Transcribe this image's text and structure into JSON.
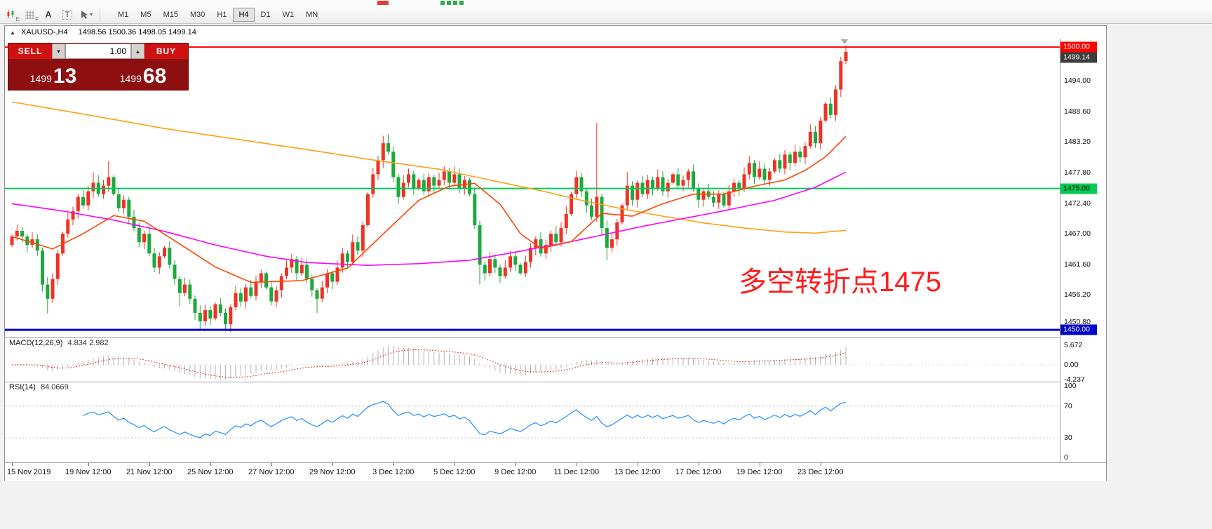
{
  "window": {
    "title_symbol": "XAUUSD-,H4",
    "title_ohlc": "1498.56 1500.36 1498.05 1499.14"
  },
  "toolbar": {
    "icon_sub_e": "E",
    "icon_sub_f": "F",
    "icon_a": "A",
    "icon_t": "T",
    "timeframes": [
      "M1",
      "M5",
      "M15",
      "M30",
      "H1",
      "H4",
      "D1",
      "W1",
      "MN"
    ],
    "active_timeframe": "H4"
  },
  "icons": {
    "collapse": "▲",
    "volume_down": "▼",
    "volume_up": "▲",
    "chevron_down": "▾"
  },
  "trade_panel": {
    "sell_label": "SELL",
    "buy_label": "BUY",
    "volume": "1.00",
    "bid_small": "1499",
    "bid_pips": "13",
    "ask_small": "1499",
    "ask_pips": "68"
  },
  "annotation": {
    "text": "多空转折点1475",
    "color": "#ff1c1c"
  },
  "macd": {
    "name": "MACD(12,26,9)",
    "values": "4.834 2.982",
    "axis_labels": [
      "5.672",
      "0.00",
      "-4.237"
    ]
  },
  "rsi": {
    "name": "RSI(14)",
    "value": "84.0669",
    "axis_labels": [
      "100",
      "70",
      "30",
      "0"
    ],
    "levels": [
      70,
      30
    ]
  },
  "chart_data": {
    "type": "candlestick",
    "symbol": "XAUUSD-",
    "period": "H4",
    "title": "XAUUSD-,H4 1498.56 1500.36 1498.05 1499.14",
    "y_range": [
      1448.6,
      1501.5
    ],
    "y_tick_labels": [
      "1494.00",
      "1488.60",
      "1483.20",
      "1477.80",
      "1472.40",
      "1467.00",
      "1461.60",
      "1456.20",
      "1450.80"
    ],
    "last_price": 1499.14,
    "last_price_label": "1499.14",
    "x_labels": [
      "15 Nov 2019",
      "19 Nov 12:00",
      "21 Nov 12:00",
      "25 Nov 12:00",
      "27 Nov 12:00",
      "29 Nov 12:00",
      "3 Dec 12:00",
      "5 Dec 12:00",
      "9 Dec 12:00",
      "11 Dec 12:00",
      "13 Dec 12:00",
      "17 Dec 12:00",
      "19 Dec 12:00",
      "23 Dec 12:00"
    ],
    "x_label_indices": [
      0,
      15,
      27,
      39,
      51,
      63,
      75,
      87,
      99,
      111,
      123,
      135,
      147,
      159
    ],
    "first_open": 1465.0,
    "closes": [
      1466.5,
      1467.5,
      1466.5,
      1465.0,
      1466.0,
      1464.0,
      1458.0,
      1455.5,
      1459.0,
      1463.5,
      1467.0,
      1469.5,
      1471.0,
      1473.5,
      1472.0,
      1474.5,
      1476.0,
      1474.0,
      1475.5,
      1477.0,
      1474.0,
      1471.5,
      1473.0,
      1470.0,
      1468.0,
      1465.5,
      1467.0,
      1463.5,
      1461.0,
      1463.0,
      1464.5,
      1461.5,
      1459.0,
      1456.5,
      1458.0,
      1455.5,
      1453.0,
      1451.5,
      1453.5,
      1452.0,
      1454.5,
      1453.0,
      1451.0,
      1454.0,
      1456.5,
      1455.0,
      1457.5,
      1456.0,
      1458.5,
      1460.0,
      1457.5,
      1455.0,
      1457.0,
      1459.5,
      1461.0,
      1462.5,
      1460.0,
      1461.5,
      1459.0,
      1457.0,
      1455.5,
      1457.5,
      1460.0,
      1458.5,
      1461.0,
      1463.5,
      1462.0,
      1465.5,
      1464.0,
      1468.5,
      1474.0,
      1477.5,
      1480.0,
      1483.0,
      1481.5,
      1477.0,
      1473.5,
      1476.0,
      1477.5,
      1475.0,
      1476.5,
      1474.5,
      1477.0,
      1475.5,
      1476.5,
      1478.0,
      1476.0,
      1477.5,
      1475.0,
      1476.5,
      1474.0,
      1468.5,
      1461.5,
      1460.0,
      1462.5,
      1461.0,
      1459.5,
      1461.0,
      1463.0,
      1461.5,
      1460.0,
      1462.0,
      1464.5,
      1466.0,
      1463.5,
      1465.0,
      1467.0,
      1465.5,
      1468.0,
      1470.5,
      1474.0,
      1477.0,
      1474.5,
      1472.0,
      1470.0,
      1473.5,
      1468.0,
      1464.5,
      1466.0,
      1469.0,
      1472.0,
      1475.5,
      1473.0,
      1476.0,
      1474.0,
      1476.5,
      1475.0,
      1477.0,
      1474.5,
      1476.0,
      1477.5,
      1475.5,
      1476.5,
      1478.0,
      1475.0,
      1473.0,
      1474.5,
      1473.5,
      1472.5,
      1474.0,
      1472.0,
      1474.5,
      1476.0,
      1475.0,
      1477.5,
      1479.5,
      1477.0,
      1478.5,
      1476.5,
      1478.0,
      1480.0,
      1478.5,
      1481.0,
      1479.5,
      1481.5,
      1480.5,
      1482.5,
      1485.0,
      1483.0,
      1487.0,
      1490.0,
      1488.0,
      1492.5,
      1497.5,
      1499.14
    ],
    "special_highs": {
      "16": 1477.9,
      "19": 1479.9,
      "73": 1484.3,
      "74": 1484.6,
      "109": 1471.9,
      "115": 1486.6,
      "121": 1477.9,
      "145": 1480.7,
      "163": 1498.3,
      "164": 1500.36
    },
    "special_lows": {
      "7": 1452.9,
      "33": 1454.2,
      "37": 1449.9,
      "42": 1449.8,
      "60": 1453.0,
      "92": 1458.0,
      "117": 1462.3,
      "135": 1471.6
    },
    "colors": {
      "up": "#ee3325",
      "down": "#1ea93c"
    },
    "hlines": [
      {
        "price": 1500.0,
        "label": "1500.00",
        "color": "#ff0000",
        "label_fg": "#ffffff",
        "width": 2
      },
      {
        "price": 1475.0,
        "label": "1475.00",
        "color": "#00cc55",
        "label_fg": "#000000",
        "width": 2
      },
      {
        "price": 1450.0,
        "label": "1450.00",
        "color": "#0000cc",
        "label_fg": "#ffffff",
        "width": 3
      }
    ],
    "moving_averages": [
      {
        "name": "ma-slow",
        "color": "#ffa012",
        "anchors": [
          [
            0,
            1490.3
          ],
          [
            15,
            1488.0
          ],
          [
            30,
            1485.6
          ],
          [
            45,
            1483.6
          ],
          [
            60,
            1481.6
          ],
          [
            72,
            1479.9
          ],
          [
            84,
            1478.4
          ],
          [
            96,
            1476.1
          ],
          [
            104,
            1474.6
          ],
          [
            112,
            1472.9
          ],
          [
            120,
            1471.4
          ],
          [
            128,
            1470.1
          ],
          [
            136,
            1468.9
          ],
          [
            144,
            1468.0
          ],
          [
            152,
            1467.3
          ],
          [
            158,
            1467.1
          ],
          [
            164,
            1467.6
          ]
        ]
      },
      {
        "name": "ma-mid",
        "color": "#ff00ff",
        "anchors": [
          [
            0,
            1472.3
          ],
          [
            10,
            1471.0
          ],
          [
            20,
            1469.4
          ],
          [
            30,
            1467.4
          ],
          [
            40,
            1465.0
          ],
          [
            50,
            1463.0
          ],
          [
            58,
            1461.9
          ],
          [
            70,
            1461.4
          ],
          [
            80,
            1461.7
          ],
          [
            90,
            1462.3
          ],
          [
            100,
            1463.9
          ],
          [
            110,
            1465.6
          ],
          [
            124,
            1468.3
          ],
          [
            138,
            1470.7
          ],
          [
            150,
            1472.9
          ],
          [
            158,
            1475.2
          ],
          [
            164,
            1477.9
          ]
        ]
      },
      {
        "name": "ma-fast",
        "color": "#ff4500",
        "anchors": [
          [
            0,
            1466.5
          ],
          [
            8,
            1464.3
          ],
          [
            14,
            1467.0
          ],
          [
            20,
            1470.2
          ],
          [
            26,
            1469.2
          ],
          [
            34,
            1464.6
          ],
          [
            40,
            1461.1
          ],
          [
            47,
            1458.4
          ],
          [
            57,
            1458.7
          ],
          [
            66,
            1460.9
          ],
          [
            74,
            1467.8
          ],
          [
            80,
            1472.9
          ],
          [
            86,
            1475.4
          ],
          [
            91,
            1475.9
          ],
          [
            96,
            1472.2
          ],
          [
            100,
            1467.0
          ],
          [
            104,
            1464.4
          ],
          [
            110,
            1465.6
          ],
          [
            116,
            1470.6
          ],
          [
            122,
            1470.1
          ],
          [
            128,
            1472.3
          ],
          [
            134,
            1474.0
          ],
          [
            140,
            1474.0
          ],
          [
            146,
            1475.4
          ],
          [
            152,
            1476.5
          ],
          [
            156,
            1478.2
          ],
          [
            160,
            1480.6
          ],
          [
            164,
            1484.2
          ]
        ]
      }
    ],
    "macd_params": [
      12,
      26,
      9
    ],
    "macd_last": {
      "main": 4.834,
      "signal": 2.982
    },
    "macd_scale": [
      5.672,
      -4.237
    ],
    "rsi_period": 14,
    "rsi_last": 84.0669
  }
}
